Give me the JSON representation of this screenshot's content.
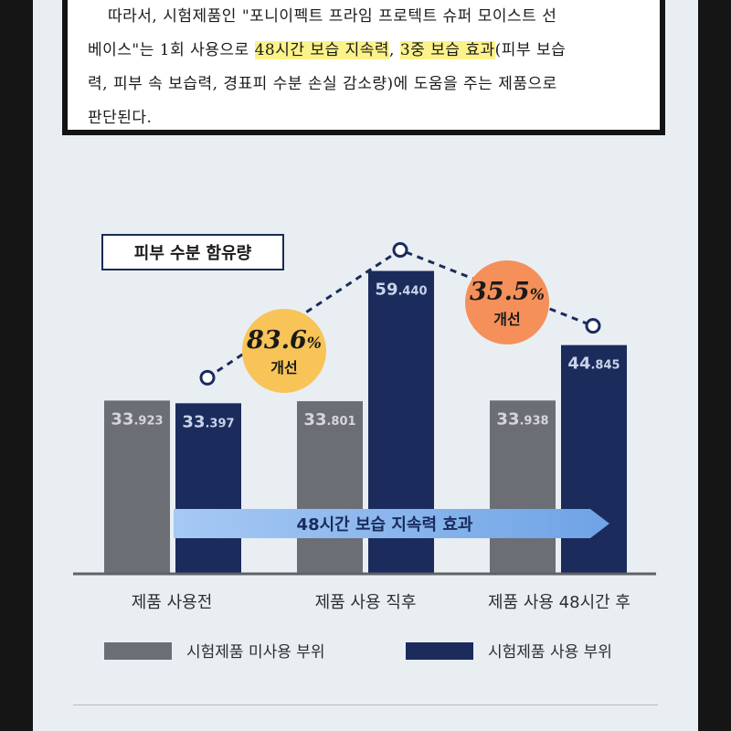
{
  "document": {
    "line1": "따라서, 시험제품인 \"포니이펙트 프라임 프로텍트 슈퍼 모이스트 선",
    "line2_pre": "베이스\"는 1회 사용으로 ",
    "highlight1": "48시간 보습 지속력",
    "line2_mid": ", ",
    "highlight2": "3중 보습 효과",
    "line2_post": "(피부 보습",
    "line3": "력, 피부 속 보습력, 경표피 수분 손실 감소량)에 도움을 주는 제품으로",
    "line4": "판단된다."
  },
  "colors": {
    "untreated": "#6b6e75",
    "treated": "#1a2b5c",
    "badge": "#f8c458",
    "badge2": "#f5905a",
    "arrow": "#8fb8ee"
  },
  "chart_data": {
    "type": "bar",
    "title": "피부 수분 함유량",
    "categories": [
      "제품 사용전",
      "제품 사용 직후",
      "제품 사용 48시간 후"
    ],
    "series": [
      {
        "name": "시험제품 미사용 부위",
        "values": [
          33.923,
          33.801,
          33.938
        ]
      },
      {
        "name": "시험제품 사용 부위",
        "values": [
          33.397,
          59.44,
          44.845
        ]
      }
    ],
    "value_labels": [
      [
        "33.923",
        "33.801",
        "33.938"
      ],
      [
        "33.397",
        "59.440",
        "44.845"
      ]
    ],
    "annotations": [
      {
        "value": "83.6%",
        "text": "개선"
      },
      {
        "value": "35.5%",
        "text": "개선"
      }
    ],
    "arrow_label": "48시간 보습 지속력 효과",
    "trend_line": "dashed line through treated-series points",
    "legend": "bottom",
    "grid": false
  }
}
